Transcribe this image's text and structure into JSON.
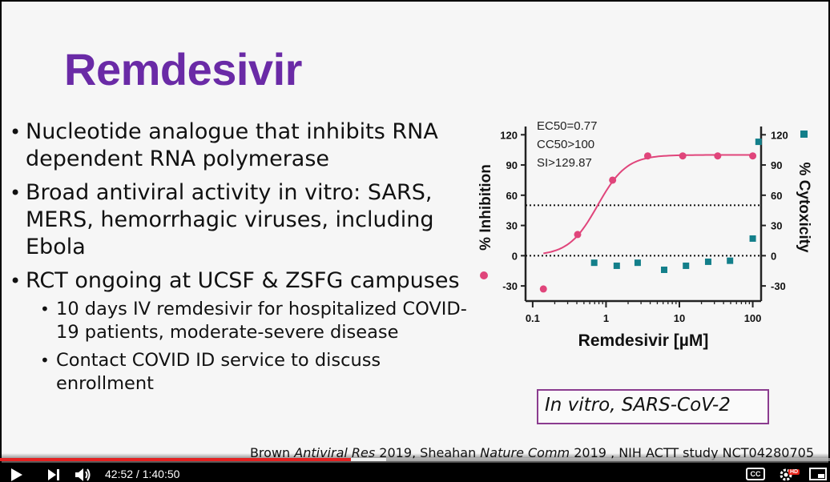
{
  "slide": {
    "title": "Remdesivir",
    "bullets": [
      {
        "text": "Nucleotide analogue that inhibits RNA dependent RNA polymerase"
      },
      {
        "text": "Broad antiviral activity in vitro: SARS, MERS, hemorrhagic viruses, including Ebola"
      },
      {
        "text": "RCT ongoing at UCSF & ZSFG campuses",
        "sub": [
          "10 days IV remdesivir for hospitalized COVID-19 patients, moderate-severe disease",
          "Contact COVID ID service to discuss enrollment"
        ]
      }
    ],
    "note": "In vitro, SARS-CoV-2",
    "citation": {
      "a": "Brown ",
      "a_i": "Antiviral Res",
      "b": " 2019, Sheahan ",
      "b_i": "Nature Comm",
      "c": " 2019 , NIH ACTT study NCT04280705"
    }
  },
  "chart_data": {
    "type": "scatter",
    "annotations": [
      "EC50=0.77",
      "CC50>100",
      "SI>129.87"
    ],
    "xlabel": "Remdesivir [µM]",
    "ylabel_left": "% Inhibition",
    "ylabel_right": "% Cytoxicity",
    "x_ticks": [
      "0.1",
      "1",
      "10",
      "100"
    ],
    "y_ticks": [
      "120",
      "90",
      "60",
      "30",
      "0",
      "-30"
    ],
    "x_scale": "log",
    "xlim": [
      0.08,
      130
    ],
    "ylim": [
      -45,
      125
    ],
    "reference_lines": [
      50,
      0
    ],
    "series": [
      {
        "name": "% Inhibition",
        "marker": "circle",
        "color": "#e0457b",
        "x": [
          0.14,
          0.41,
          1.23,
          3.7,
          11.1,
          33.3,
          100
        ],
        "y": [
          -33,
          21,
          75,
          99,
          99,
          99,
          99
        ]
      },
      {
        "name": "% Cytoxicity",
        "marker": "square",
        "color": "#137f8a",
        "x": [
          0.69,
          1.4,
          2.7,
          6.2,
          12.3,
          24.7,
          49,
          100,
          120
        ],
        "y": [
          -7,
          -10,
          -7,
          -14,
          -10,
          -6,
          -5,
          17,
          113
        ]
      }
    ]
  },
  "player": {
    "time": "42:52 / 1:40:50",
    "played_fraction": 0.423,
    "buffered_fraction": 0.465,
    "cc_label": "CC",
    "hd_badge": "HD"
  }
}
